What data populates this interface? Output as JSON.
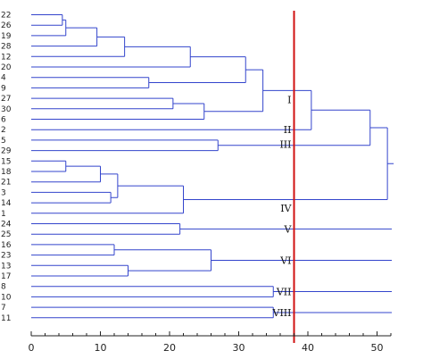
{
  "chart_data": {
    "type": "dendrogram",
    "orientation": "horizontal",
    "xlim": [
      0,
      52
    ],
    "x_ticks": [
      0,
      10,
      20,
      30,
      40,
      50
    ],
    "leaves": [
      "22",
      "26",
      "19",
      "28",
      "12",
      "20",
      "4",
      "9",
      "27",
      "30",
      "6",
      "2",
      "5",
      "29",
      "15",
      "18",
      "21",
      "3",
      "14",
      "1",
      "24",
      "25",
      "16",
      "23",
      "13",
      "17",
      "8",
      "10",
      "7",
      "11"
    ],
    "merges": [
      {
        "a": "22",
        "b": "26",
        "height": 4.5
      },
      {
        "a": "22-26",
        "b": "19",
        "height": 5.0
      },
      {
        "a": "22-26-19",
        "b": "28",
        "height": 9.5
      },
      {
        "a": "22-26-19-28",
        "b": "12",
        "height": 13.5
      },
      {
        "a": "A(22,26,19,28,12)",
        "b": "20",
        "height": 23.0
      },
      {
        "a": "4",
        "b": "9",
        "height": 17.0
      },
      {
        "a": "B",
        "b": "C(4,9)",
        "height": 31.0
      },
      {
        "a": "27",
        "b": "30",
        "height": 20.5
      },
      {
        "a": "27-30",
        "b": "6",
        "height": 25.0
      },
      {
        "a": "D",
        "b": "E(27,30,6)",
        "height": 33.5
      },
      {
        "a": "F",
        "b": "2",
        "height": 40.5
      },
      {
        "a": "5",
        "b": "29",
        "height": 27.0
      },
      {
        "a": "G",
        "b": "H(5,29)",
        "height": 49.0
      },
      {
        "a": "15",
        "b": "18",
        "height": 5.0
      },
      {
        "a": "15-18",
        "b": "21",
        "height": 10.0
      },
      {
        "a": "3",
        "b": "14",
        "height": 11.5
      },
      {
        "a": "J",
        "b": "K(3,14)",
        "height": 12.5
      },
      {
        "a": "L",
        "b": "1",
        "height": 22.0
      },
      {
        "a": "I",
        "b": "M",
        "height": 51.5
      },
      {
        "a": "24",
        "b": "25",
        "height": 21.5
      },
      {
        "a": "16",
        "b": "23",
        "height": 12.0
      },
      {
        "a": "13",
        "b": "17",
        "height": 14.0
      },
      {
        "a": "O",
        "b": "P",
        "height": 26.0
      },
      {
        "a": "8",
        "b": "10",
        "height": 35.0
      },
      {
        "a": "7",
        "b": "11",
        "height": 35.0
      }
    ],
    "cut_line": {
      "x": 38,
      "color": "#d01010"
    },
    "cluster_labels": [
      {
        "text": "I",
        "leaf_index": 8.1
      },
      {
        "text": "II",
        "leaf_index": 11.0
      },
      {
        "text": "III",
        "leaf_index": 12.4
      },
      {
        "text": "IV",
        "leaf_index": 18.5
      },
      {
        "text": "V",
        "leaf_index": 20.5
      },
      {
        "text": "VI",
        "leaf_index": 23.5
      },
      {
        "text": "VII",
        "leaf_index": 26.5
      },
      {
        "text": "VIII",
        "leaf_index": 28.5
      }
    ],
    "line_color": "#3344cc",
    "tick_color": "#222222",
    "grid": false,
    "title": "",
    "xlabel": "",
    "ylabel": ""
  }
}
